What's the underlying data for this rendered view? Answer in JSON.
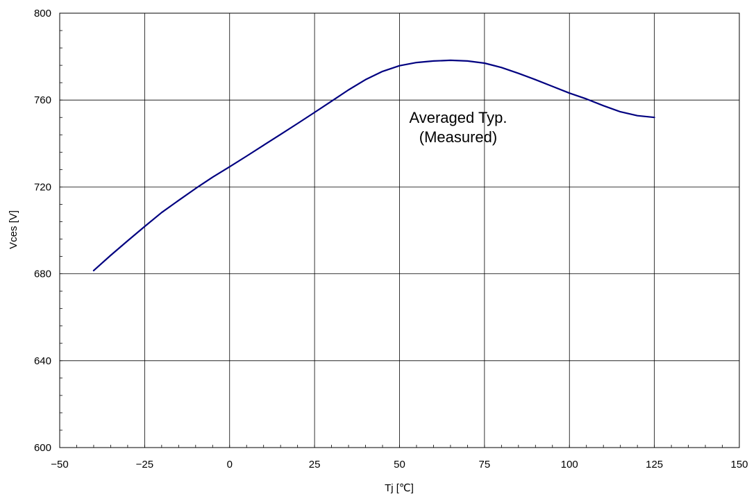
{
  "chart_data": {
    "type": "line",
    "title": "",
    "xlabel": "Tj [℃]",
    "ylabel": "Vces [V]",
    "xlim": [
      -50,
      150
    ],
    "ylim": [
      600,
      800
    ],
    "xticks": [
      -50,
      -25,
      0,
      25,
      50,
      75,
      100,
      125,
      150
    ],
    "xtick_labels": [
      "−50",
      "−25",
      "0",
      "25",
      "50",
      "75",
      "100",
      "125",
      "150"
    ],
    "yticks": [
      600,
      640,
      680,
      720,
      760,
      800
    ],
    "ytick_labels": [
      "600",
      "640",
      "680",
      "720",
      "760",
      "800"
    ],
    "grid": true,
    "annotations": [
      "Averaged Typ.",
      "(Measured)"
    ],
    "series": [
      {
        "color": "#000080",
        "x": [
          -40,
          -35,
          -30,
          -25,
          -20,
          -15,
          -10,
          -5,
          0,
          5,
          10,
          15,
          20,
          25,
          30,
          35,
          40,
          45,
          50,
          55,
          60,
          65,
          70,
          75,
          77,
          80,
          85,
          90,
          95,
          100,
          105,
          110,
          115,
          120,
          125
        ],
        "y": [
          681.5,
          688.5,
          695.2,
          701.8,
          708.2,
          713.8,
          719.3,
          724.5,
          729.3,
          734.2,
          739.2,
          744.2,
          749.2,
          754.3,
          759.5,
          764.7,
          769.4,
          773.2,
          775.8,
          777.3,
          778.0,
          778.3,
          778.0,
          777.0,
          776.2,
          775.0,
          772.3,
          769.4,
          766.3,
          763.2,
          760.5,
          757.4,
          754.6,
          752.8,
          752.0
        ]
      }
    ]
  }
}
